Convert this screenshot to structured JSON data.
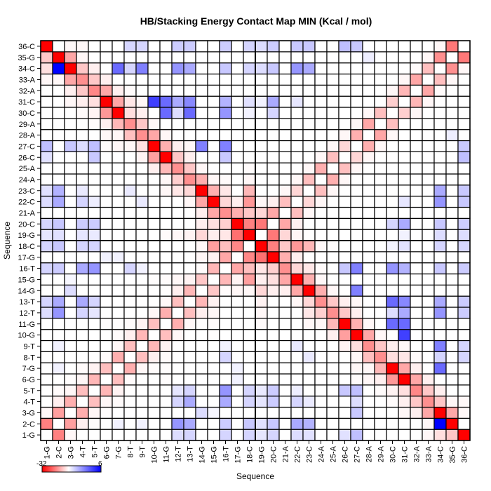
{
  "chart_data": {
    "type": "heatmap",
    "title": "HB/Stacking Energy Contact Map MIN (Kcal / mol)",
    "xlabel": "Sequence",
    "ylabel": "Sequence",
    "sequence": [
      "1-G",
      "2-C",
      "3-G",
      "4-T",
      "5-T",
      "6-G",
      "7-G",
      "8-T",
      "9-T",
      "10-G",
      "11-G",
      "12-T",
      "13-T",
      "14-G",
      "15-G",
      "16-T",
      "17-G",
      "18-C",
      "19-G",
      "20-C",
      "21-A",
      "22-C",
      "23-C",
      "24-A",
      "25-A",
      "26-C",
      "27-C",
      "28-A",
      "29-A",
      "30-C",
      "31-C",
      "32-A",
      "33-A",
      "34-C",
      "35-G",
      "36-C"
    ],
    "y_order": "descending",
    "colorbar": {
      "min": -32,
      "max": 6,
      "min_label": "-32",
      "max_label": "6",
      "min_color": "#ff0000",
      "mid_color": "#ffffff",
      "max_color": "#0000ff"
    },
    "symmetric": true,
    "default_value": 0,
    "cells_format": "[seq_i, seq_j, energy] upper triangle, other cells 0",
    "cells": [
      [
        1,
        36,
        -32
      ],
      [
        3,
        36,
        -1
      ],
      [
        4,
        36,
        -1
      ],
      [
        8,
        36,
        1
      ],
      [
        9,
        36,
        1
      ],
      [
        12,
        36,
        1.2
      ],
      [
        13,
        36,
        1.2
      ],
      [
        16,
        36,
        1.2
      ],
      [
        18,
        36,
        1
      ],
      [
        1,
        35,
        -7
      ],
      [
        2,
        35,
        -32
      ],
      [
        3,
        35,
        -11
      ],
      [
        4,
        35,
        -1
      ],
      [
        1,
        34,
        -4
      ],
      [
        2,
        34,
        6
      ],
      [
        3,
        34,
        -32
      ],
      [
        4,
        34,
        -7
      ],
      [
        5,
        34,
        -2
      ],
      [
        7,
        34,
        3.5
      ],
      [
        8,
        34,
        1
      ],
      [
        9,
        34,
        3
      ],
      [
        12,
        34,
        2.5
      ],
      [
        13,
        34,
        2
      ],
      [
        16,
        34,
        1.3
      ],
      [
        18,
        34,
        1
      ],
      [
        1,
        33,
        -1
      ],
      [
        2,
        33,
        -1
      ],
      [
        3,
        33,
        -11
      ],
      [
        4,
        33,
        -14
      ],
      [
        5,
        33,
        -7
      ],
      [
        6,
        33,
        -2
      ],
      [
        3,
        32,
        -2
      ],
      [
        4,
        32,
        -7
      ],
      [
        5,
        32,
        -15
      ],
      [
        6,
        32,
        -11
      ],
      [
        7,
        32,
        -2
      ],
      [
        8,
        32,
        -0.5
      ],
      [
        3,
        31,
        -1
      ],
      [
        4,
        31,
        -2
      ],
      [
        5,
        31,
        -4
      ],
      [
        6,
        31,
        -32
      ],
      [
        7,
        31,
        -11
      ],
      [
        8,
        31,
        -3
      ],
      [
        9,
        31,
        -1
      ],
      [
        10,
        31,
        4.5
      ],
      [
        11,
        31,
        3.5
      ],
      [
        12,
        31,
        2
      ],
      [
        13,
        31,
        2.8
      ],
      [
        16,
        31,
        1.8
      ],
      [
        18,
        31,
        0.7
      ],
      [
        4,
        30,
        -0.5
      ],
      [
        5,
        30,
        -1.5
      ],
      [
        6,
        30,
        -13
      ],
      [
        7,
        30,
        -32
      ],
      [
        8,
        30,
        -4
      ],
      [
        9,
        30,
        -2
      ],
      [
        11,
        30,
        3.5
      ],
      [
        12,
        30,
        0.8
      ],
      [
        13,
        30,
        3.5
      ],
      [
        16,
        30,
        2.5
      ],
      [
        18,
        30,
        0.3
      ],
      [
        5,
        29,
        -0.5
      ],
      [
        6,
        29,
        -2
      ],
      [
        7,
        29,
        -9
      ],
      [
        8,
        29,
        -14
      ],
      [
        9,
        29,
        -7
      ],
      [
        10,
        29,
        -1
      ],
      [
        6,
        28,
        -1
      ],
      [
        7,
        28,
        -1
      ],
      [
        8,
        28,
        -8
      ],
      [
        9,
        28,
        -14
      ],
      [
        10,
        28,
        -11
      ],
      [
        11,
        28,
        -1
      ],
      [
        1,
        27,
        1.5
      ],
      [
        3,
        27,
        1.3
      ],
      [
        4,
        27,
        0.8
      ],
      [
        5,
        27,
        1.5
      ],
      [
        6,
        27,
        -0.5
      ],
      [
        7,
        27,
        -1
      ],
      [
        8,
        27,
        -1
      ],
      [
        9,
        27,
        -4
      ],
      [
        10,
        27,
        -32
      ],
      [
        11,
        27,
        -10
      ],
      [
        12,
        27,
        -2
      ],
      [
        13,
        27,
        -1
      ],
      [
        14,
        27,
        3
      ],
      [
        16,
        27,
        3
      ],
      [
        1,
        26,
        0.7
      ],
      [
        5,
        26,
        1.3
      ],
      [
        9,
        26,
        -1.5
      ],
      [
        10,
        26,
        -12
      ],
      [
        11,
        26,
        -32
      ],
      [
        12,
        26,
        -7
      ],
      [
        13,
        26,
        -2
      ],
      [
        16,
        26,
        1.3
      ],
      [
        10,
        25,
        -2
      ],
      [
        11,
        25,
        -9
      ],
      [
        12,
        25,
        -14
      ],
      [
        13,
        25,
        -7
      ],
      [
        14,
        25,
        -1
      ],
      [
        18,
        25,
        -0.5
      ],
      [
        11,
        24,
        -1
      ],
      [
        12,
        24,
        -6
      ],
      [
        13,
        24,
        -14
      ],
      [
        14,
        24,
        -10
      ],
      [
        15,
        24,
        -1
      ],
      [
        16,
        24,
        -0.5
      ],
      [
        18,
        24,
        -1
      ],
      [
        1,
        23,
        0.7
      ],
      [
        2,
        23,
        1.8
      ],
      [
        4,
        23,
        0.5
      ],
      [
        8,
        23,
        0.5
      ],
      [
        11,
        23,
        -1
      ],
      [
        12,
        23,
        -3
      ],
      [
        13,
        23,
        -5
      ],
      [
        14,
        23,
        -32
      ],
      [
        15,
        23,
        -10
      ],
      [
        16,
        23,
        -3
      ],
      [
        18,
        23,
        -9
      ],
      [
        1,
        22,
        0.8
      ],
      [
        2,
        22,
        2
      ],
      [
        4,
        22,
        1
      ],
      [
        5,
        22,
        0.4
      ],
      [
        9,
        22,
        0.5
      ],
      [
        13,
        22,
        -1
      ],
      [
        14,
        22,
        -11
      ],
      [
        15,
        22,
        -32
      ],
      [
        16,
        22,
        -5
      ],
      [
        17,
        22,
        -2
      ],
      [
        18,
        22,
        -13
      ],
      [
        14,
        21,
        -2
      ],
      [
        15,
        21,
        -11
      ],
      [
        16,
        21,
        -14
      ],
      [
        17,
        21,
        -10
      ],
      [
        18,
        21,
        -7
      ],
      [
        1,
        20,
        1
      ],
      [
        2,
        20,
        1.3
      ],
      [
        4,
        20,
        1.2
      ],
      [
        5,
        20,
        1.2
      ],
      [
        14,
        20,
        -2
      ],
      [
        15,
        20,
        -4
      ],
      [
        16,
        20,
        -6
      ],
      [
        17,
        20,
        -32
      ],
      [
        18,
        20,
        -16
      ],
      [
        1,
        19,
        0.6
      ],
      [
        2,
        19,
        0.7
      ],
      [
        4,
        19,
        0.6
      ],
      [
        5,
        19,
        0.5
      ],
      [
        11,
        19,
        -0.5
      ],
      [
        12,
        19,
        -1
      ],
      [
        13,
        19,
        -1.5
      ],
      [
        14,
        19,
        -5
      ],
      [
        15,
        19,
        -2
      ],
      [
        16,
        19,
        -3
      ],
      [
        17,
        19,
        -18
      ],
      [
        18,
        19,
        -32
      ],
      [
        35,
        36,
        -17
      ],
      [
        34,
        36,
        -1
      ],
      [
        19,
        36,
        0.8
      ],
      [
        20,
        36,
        1.2
      ],
      [
        22,
        36,
        1.3
      ],
      [
        23,
        36,
        1.3
      ],
      [
        26,
        36,
        1.5
      ],
      [
        27,
        36,
        1.3
      ],
      [
        33,
        35,
        -1
      ],
      [
        34,
        35,
        -14
      ],
      [
        28,
        35,
        0.4
      ],
      [
        32,
        34,
        -0.5
      ],
      [
        33,
        34,
        -8
      ],
      [
        19,
        34,
        0.8
      ],
      [
        20,
        34,
        1.3
      ],
      [
        22,
        34,
        2.5
      ],
      [
        23,
        34,
        2
      ],
      [
        31,
        33,
        -1
      ],
      [
        32,
        33,
        -11
      ],
      [
        30,
        32,
        -1
      ],
      [
        31,
        32,
        -9
      ],
      [
        30,
        31,
        -6
      ],
      [
        19,
        31,
        0.3
      ],
      [
        20,
        31,
        2
      ],
      [
        22,
        31,
        0.6
      ],
      [
        29,
        30,
        -8
      ],
      [
        28,
        30,
        -1
      ],
      [
        20,
        30,
        1
      ],
      [
        28,
        29,
        -11
      ],
      [
        27,
        29,
        -1
      ],
      [
        27,
        28,
        -10
      ],
      [
        26,
        28,
        -1
      ],
      [
        26,
        27,
        -5
      ],
      [
        25,
        27,
        -1
      ],
      [
        25,
        26,
        -8
      ],
      [
        24,
        26,
        -1
      ],
      [
        24,
        25,
        -10
      ],
      [
        23,
        25,
        -1
      ],
      [
        23,
        24,
        -8
      ],
      [
        22,
        24,
        -1
      ],
      [
        22,
        23,
        -5
      ],
      [
        21,
        23,
        -1
      ],
      [
        21,
        22,
        -8
      ],
      [
        20,
        22,
        -2
      ],
      [
        19,
        22,
        -1
      ],
      [
        20,
        21,
        -11
      ],
      [
        19,
        21,
        -5
      ],
      [
        19,
        20,
        -17
      ],
      [
        17,
        18,
        -15
      ],
      [
        16,
        18,
        -8
      ],
      [
        15,
        18,
        -12
      ],
      [
        14,
        18,
        -1
      ],
      [
        1,
        18,
        1
      ],
      [
        2,
        18,
        1.3
      ],
      [
        4,
        18,
        1
      ],
      [
        5,
        18,
        1
      ],
      [
        15,
        17,
        -1.5
      ],
      [
        16,
        17,
        -11
      ],
      [
        14,
        17,
        -1
      ],
      [
        6,
        17,
        0.3
      ],
      [
        7,
        17,
        0.3
      ],
      [
        15,
        16,
        -9
      ],
      [
        14,
        16,
        -0.5
      ],
      [
        1,
        16,
        1
      ],
      [
        2,
        16,
        1.2
      ],
      [
        4,
        16,
        2
      ],
      [
        5,
        16,
        2.5
      ],
      [
        8,
        16,
        1
      ],
      [
        9,
        16,
        0.3
      ],
      [
        14,
        15,
        -7
      ],
      [
        13,
        15,
        -1.5
      ],
      [
        12,
        15,
        -1
      ],
      [
        11,
        15,
        -0.5
      ],
      [
        10,
        15,
        -0.3
      ],
      [
        3,
        15,
        0.2
      ],
      [
        13,
        14,
        -9
      ],
      [
        12,
        14,
        -2
      ],
      [
        11,
        14,
        -0.3
      ],
      [
        3,
        14,
        0.8
      ],
      [
        12,
        13,
        -8
      ],
      [
        11,
        13,
        -1
      ],
      [
        1,
        13,
        1
      ],
      [
        2,
        13,
        2
      ],
      [
        4,
        13,
        2
      ],
      [
        5,
        13,
        1
      ],
      [
        11,
        12,
        -10
      ],
      [
        10,
        12,
        -1
      ],
      [
        1,
        12,
        0.8
      ],
      [
        2,
        12,
        2.5
      ],
      [
        4,
        12,
        1
      ],
      [
        5,
        12,
        0.6
      ],
      [
        10,
        11,
        -8
      ],
      [
        9,
        11,
        -1.5
      ],
      [
        8,
        11,
        -0.5
      ],
      [
        7,
        11,
        -0.3
      ],
      [
        6,
        11,
        -0.3
      ],
      [
        9,
        10,
        -9
      ],
      [
        8,
        10,
        -2
      ],
      [
        7,
        10,
        -0.5
      ],
      [
        8,
        9,
        -8
      ],
      [
        7,
        9,
        -1
      ],
      [
        2,
        9,
        0.3
      ],
      [
        7,
        8,
        -10
      ],
      [
        6,
        8,
        -0.5
      ],
      [
        6,
        7,
        -8
      ],
      [
        5,
        7,
        -1.5
      ],
      [
        4,
        7,
        -0.5
      ],
      [
        2,
        7,
        0.3
      ],
      [
        5,
        6,
        -9
      ],
      [
        4,
        6,
        -1
      ],
      [
        3,
        6,
        -0.3
      ],
      [
        4,
        5,
        -8
      ],
      [
        3,
        5,
        -1
      ],
      [
        2,
        5,
        -0.5
      ],
      [
        3,
        4,
        -10
      ],
      [
        2,
        4,
        -2
      ],
      [
        2,
        3,
        -12
      ],
      [
        1,
        3,
        -1
      ],
      [
        1,
        2,
        -16
      ]
    ],
    "divider_after_index": 18,
    "grid": true
  }
}
